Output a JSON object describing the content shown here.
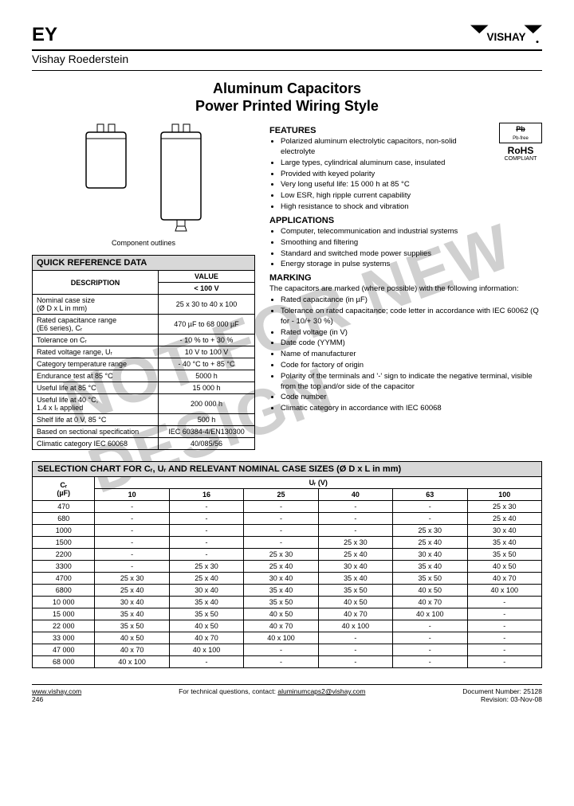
{
  "header": {
    "code": "EY",
    "brand": "VISHAY",
    "subhead": "Vishay Roederstein"
  },
  "title": {
    "line1": "Aluminum Capacitors",
    "line2": "Power Printed Wiring Style"
  },
  "outlines_label": "Component outlines",
  "watermark": "NOT FOR NEW DESIGN",
  "rohs": {
    "pb": "Pb",
    "pb_sub": "Pb-free",
    "rohs": "RoHS",
    "compliant": "COMPLIANT"
  },
  "features": {
    "head": "FEATURES",
    "items": [
      "Polarized aluminum electrolytic capacitors, non-solid electrolyte",
      "Large types, cylindrical aluminum case, insulated",
      "Provided with keyed polarity",
      "Very long useful life: 15 000 h at 85 °C",
      "Low ESR, high ripple current capability",
      "High resistance to shock and vibration"
    ]
  },
  "applications": {
    "head": "APPLICATIONS",
    "items": [
      "Computer, telecommunication and industrial systems",
      "Smoothing and filtering",
      "Standard and switched mode power supplies",
      "Energy storage in pulse systems"
    ]
  },
  "marking": {
    "head": "MARKING",
    "intro": "The capacitors are marked (where possible) with the following information:",
    "items": [
      "Rated capacitance (in µF)",
      "Tolerance on rated capacitance; code letter in accordance with IEC 60062 (Q for - 10/+ 30 %)",
      "Rated voltage (in V)",
      "Date code (YYMM)",
      "Name of manufacturer",
      "Code for factory of origin",
      "Polarity of the terminals and '-' sign to indicate the negative terminal, visible from the top and/or side of the capacitor",
      "Code number",
      "Climatic category in accordance with IEC 60068"
    ]
  },
  "qrd": {
    "title": "QUICK REFERENCE DATA",
    "desc_head": "DESCRIPTION",
    "value_head": "VALUE",
    "voltage_head": "< 100 V",
    "rows": [
      {
        "desc": "Nominal case size\n(Ø D x L in mm)",
        "val": "25 x 30 to 40 x 100"
      },
      {
        "desc": "Rated capacitance range\n(E6 series), Cᵣ",
        "val": "470 µF to 68 000 µF"
      },
      {
        "desc": "Tolerance on Cᵣ",
        "val": "- 10 % to + 30 %"
      },
      {
        "desc": "Rated voltage range, Uᵣ",
        "val": "10 V to 100 V"
      },
      {
        "desc": "Category temperature range",
        "val": "- 40 °C to + 85 °C"
      },
      {
        "desc": "Endurance test at 85 °C",
        "val": "5000 h"
      },
      {
        "desc": "Useful life at 85 °C",
        "val": "15 000 h"
      },
      {
        "desc": "Useful life at 40 °C,\n1.4 x Iᵣ applied",
        "val": "200 000 h"
      },
      {
        "desc": "Shelf life at 0 V, 85 °C",
        "val": "500 h"
      },
      {
        "desc": "Based on sectional specification",
        "val": "IEC 60384-4/EN130300"
      },
      {
        "desc": "Climatic category IEC 60068",
        "val": "40/085/56"
      }
    ]
  },
  "selection": {
    "title": "SELECTION CHART FOR Cᵣ, Uᵣ AND RELEVANT NOMINAL CASE SIZES (Ø D x L in mm)",
    "cr_head": "Cᵣ\n(µF)",
    "ur_head": "Uᵣ (V)",
    "voltages": [
      "10",
      "16",
      "25",
      "40",
      "63",
      "100"
    ],
    "rows": [
      {
        "cr": "470",
        "cells": [
          "-",
          "-",
          "-",
          "-",
          "-",
          "25 x 30"
        ]
      },
      {
        "cr": "680",
        "cells": [
          "-",
          "-",
          "-",
          "-",
          "-",
          "25 x 40"
        ]
      },
      {
        "cr": "1000",
        "cells": [
          "-",
          "-",
          "-",
          "-",
          "25 x 30",
          "30 x 40"
        ]
      },
      {
        "cr": "1500",
        "cells": [
          "-",
          "-",
          "-",
          "25 x 30",
          "25 x 40",
          "35 x 40"
        ]
      },
      {
        "cr": "2200",
        "cells": [
          "-",
          "-",
          "25 x 30",
          "25 x 40",
          "30 x 40",
          "35 x 50"
        ]
      },
      {
        "cr": "3300",
        "cells": [
          "-",
          "25 x 30",
          "25 x 40",
          "30 x 40",
          "35 x 40",
          "40 x 50"
        ]
      },
      {
        "cr": "4700",
        "cells": [
          "25 x 30",
          "25 x 40",
          "30 x 40",
          "35 x 40",
          "35 x 50",
          "40 x 70"
        ]
      },
      {
        "cr": "6800",
        "cells": [
          "25 x 40",
          "30 x 40",
          "35 x 40",
          "35 x 50",
          "40 x 50",
          "40 x 100"
        ]
      },
      {
        "cr": "10 000",
        "cells": [
          "30 x 40",
          "35 x 40",
          "35 x 50",
          "40 x 50",
          "40 x 70",
          "-"
        ]
      },
      {
        "cr": "15 000",
        "cells": [
          "35 x 40",
          "35 x 50",
          "40 x 50",
          "40 x 70",
          "40 x 100",
          "-"
        ]
      },
      {
        "cr": "22 000",
        "cells": [
          "35 x 50",
          "40 x 50",
          "40 x 70",
          "40 x 100",
          "-",
          "-"
        ]
      },
      {
        "cr": "33 000",
        "cells": [
          "40 x 50",
          "40 x 70",
          "40 x 100",
          "-",
          "-",
          "-"
        ]
      },
      {
        "cr": "47 000",
        "cells": [
          "40 x 70",
          "40 x 100",
          "-",
          "-",
          "-",
          "-"
        ]
      },
      {
        "cr": "68 000",
        "cells": [
          "40 x 100",
          "-",
          "-",
          "-",
          "-",
          "-"
        ]
      }
    ]
  },
  "footer": {
    "url": "www.vishay.com",
    "page": "246",
    "tech": "For technical questions, contact:",
    "email": "aluminumcaps2@vishay.com",
    "docnum_label": "Document Number:",
    "docnum": "25128",
    "rev_label": "Revision:",
    "rev": "03-Nov-08"
  },
  "colors": {
    "header_bg": "#d8d8d8",
    "border": "#000000",
    "watermark": "#d0d0d0"
  }
}
